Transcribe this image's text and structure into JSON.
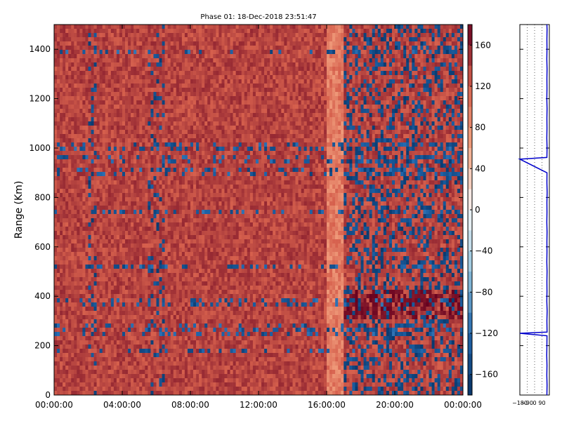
{
  "chart_data": [
    {
      "type": "heatmap",
      "title": "Phase 01: 18-Dec-2018 23:51:47",
      "xlabel": "",
      "ylabel": "Range (Km)",
      "x_ticks": [
        "00:00:00",
        "04:00:00",
        "08:00:00",
        "12:00:00",
        "16:00:00",
        "20:00:00",
        "00:00:00"
      ],
      "y_ticks": [
        0,
        200,
        400,
        600,
        800,
        1000,
        1200,
        1400
      ],
      "ylim": [
        0,
        1500
      ],
      "xlim_hours": [
        0,
        24
      ],
      "colorbar": {
        "ticks": [
          160,
          120,
          80,
          40,
          0,
          -40,
          -80,
          -120,
          -160
        ],
        "range": [
          -180,
          180
        ],
        "colormap": "RdBu_r"
      },
      "dominant_value_range": [
        120,
        160
      ],
      "notes_pattern": {
        "light_band_hours": [
          16.0,
          17.0
        ],
        "dark_blue_regions_hours": [
          [
            17.0,
            24.0
          ],
          [
            2.0,
            2.5
          ],
          [
            5.5,
            6.5
          ]
        ],
        "horizontal_streak_ranges_km": [
          1390,
          1010,
          950,
          900,
          740,
          520,
          380,
          270,
          250,
          180
        ]
      },
      "grid": false
    },
    {
      "type": "line",
      "title": "",
      "xlabel": "",
      "ylabel": "",
      "x_ticks": [
        "-180",
        "-90",
        "0",
        "90"
      ],
      "xlim": [
        -180,
        180
      ],
      "ylim": [
        0,
        1500
      ],
      "y_ticks": [
        0,
        200,
        400,
        600,
        800,
        1000,
        1200,
        1400
      ],
      "grid_vertical_dotted": true,
      "series": [
        {
          "color": "#0000cc",
          "points": [
            [
              150,
              0
            ],
            [
              152,
              40
            ],
            [
              149,
              80
            ],
            [
              151,
              120
            ],
            [
              148,
              160
            ],
            [
              150,
              200
            ],
            [
              151,
              240
            ],
            [
              -180,
              250
            ],
            [
              152,
              255
            ],
            [
              150,
              300
            ],
            [
              153,
              340
            ],
            [
              149,
              380
            ],
            [
              151,
              420
            ],
            [
              150,
              460
            ],
            [
              152,
              500
            ],
            [
              149,
              540
            ],
            [
              151,
              580
            ],
            [
              150,
              620
            ],
            [
              152,
              660
            ],
            [
              149,
              700
            ],
            [
              151,
              740
            ],
            [
              150,
              780
            ],
            [
              153,
              820
            ],
            [
              150,
              860
            ],
            [
              151,
              900
            ],
            [
              -180,
              955
            ],
            [
              150,
              962
            ],
            [
              152,
              1000
            ],
            [
              149,
              1040
            ],
            [
              151,
              1080
            ],
            [
              150,
              1120
            ],
            [
              152,
              1160
            ],
            [
              149,
              1200
            ],
            [
              151,
              1240
            ],
            [
              150,
              1280
            ],
            [
              152,
              1320
            ],
            [
              149,
              1360
            ],
            [
              151,
              1400
            ],
            [
              150,
              1440
            ],
            [
              152,
              1480
            ],
            [
              150,
              1500
            ]
          ]
        }
      ]
    }
  ],
  "colors": {
    "dominant": "#c1272d",
    "dark_blue": "#1b3d6e",
    "light": "#e8a988",
    "line": "#0000cc"
  }
}
